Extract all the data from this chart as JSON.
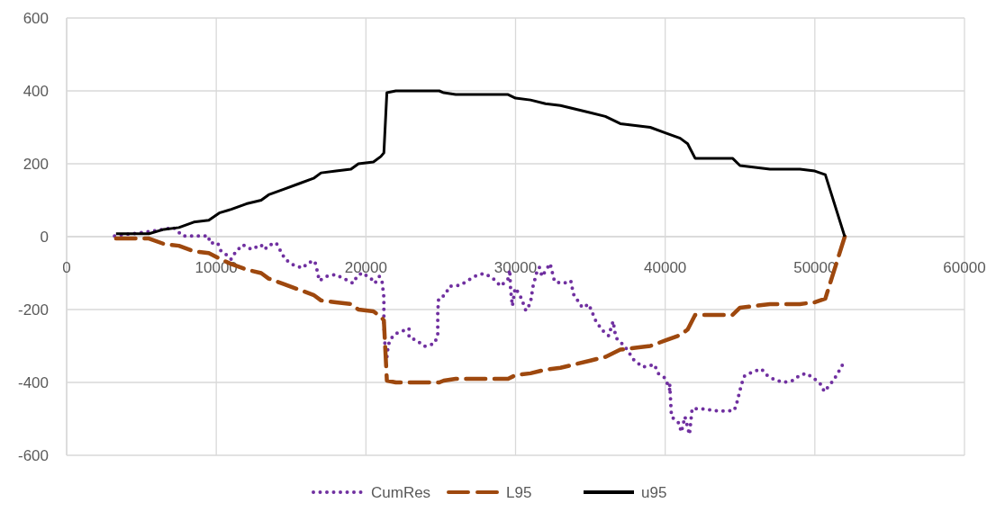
{
  "chart_data": {
    "type": "line",
    "xlim": [
      0,
      60000
    ],
    "xticks": [
      0,
      10000,
      20000,
      30000,
      40000,
      50000,
      60000
    ],
    "ylim": [
      -600,
      600
    ],
    "yticks": [
      -600,
      -400,
      -200,
      0,
      200,
      400,
      600
    ],
    "grid": true,
    "legend": "bottom",
    "series": [
      {
        "name": "CumRes",
        "color": "#7030a0",
        "line_style": "dotted",
        "x": [
          3200,
          5760,
          7150,
          7750,
          8770,
          9490,
          9550,
          10090,
          10270,
          10690,
          10990,
          11290,
          11770,
          12370,
          12970,
          13270,
          13400,
          14000,
          14600,
          15200,
          15800,
          16100,
          16580,
          16760,
          16880,
          17360,
          17960,
          18560,
          19160,
          19400,
          19760,
          20360,
          20600,
          20900,
          21080,
          21200,
          21200,
          21200,
          21260,
          21380,
          21500,
          21800,
          22100,
          22880,
          22880,
          23360,
          23900,
          24560,
          24800,
          24800,
          24860,
          25290,
          25590,
          26310,
          26790,
          27270,
          27870,
          28410,
          29010,
          29490,
          29610,
          29670,
          29790,
          29970,
          30270,
          30510,
          30690,
          30990,
          31170,
          31410,
          31590,
          31770,
          32310,
          32610,
          33210,
          33690,
          33870,
          34470,
          34890,
          35370,
          35800,
          36220,
          36520,
          36700,
          37300,
          37900,
          38500,
          39280,
          39520,
          40000,
          40300,
          40300,
          40420,
          40900,
          41080,
          41320,
          41620,
          41800,
          42400,
          43600,
          44620,
          44800,
          45100,
          45290,
          45830,
          46430,
          46790,
          47330,
          47930,
          48530,
          49010,
          49430,
          49910,
          50390,
          50630,
          51230,
          51530,
          51830
        ],
        "values": [
          2,
          15,
          25,
          2,
          2,
          2,
          -17,
          -17,
          -37,
          -50,
          -62,
          -42,
          -22,
          -35,
          -22,
          -35,
          -25,
          -17,
          -62,
          -79,
          -86,
          -72,
          -67,
          -96,
          -121,
          -109,
          -104,
          -116,
          -128,
          -109,
          -99,
          -116,
          -128,
          -109,
          -124,
          -166,
          -207,
          -240,
          -289,
          -338,
          -296,
          -272,
          -264,
          -252,
          -277,
          -284,
          -301,
          -294,
          -272,
          -207,
          -170,
          -160,
          -136,
          -133,
          -121,
          -109,
          -101,
          -111,
          -136,
          -116,
          -91,
          -146,
          -190,
          -141,
          -158,
          -183,
          -203,
          -183,
          -136,
          -99,
          -84,
          -109,
          -74,
          -124,
          -128,
          -121,
          -158,
          -195,
          -185,
          -232,
          -257,
          -272,
          -232,
          -277,
          -301,
          -338,
          -358,
          -351,
          -375,
          -388,
          -420,
          -405,
          -494,
          -511,
          -536,
          -494,
          -543,
          -472,
          -472,
          -479,
          -477,
          -454,
          -405,
          -383,
          -371,
          -363,
          -380,
          -393,
          -400,
          -395,
          -380,
          -375,
          -388,
          -405,
          -425,
          -395,
          -375,
          -353
        ]
      },
      {
        "name": "L95",
        "color": "#9e480e",
        "line_style": "dashed",
        "x": [
          3300,
          5500,
          6500,
          7500,
          8500,
          9500,
          10200,
          11000,
          12000,
          13000,
          13500,
          14500,
          15500,
          16500,
          17000,
          18000,
          19000,
          19500,
          20500,
          21000,
          21200,
          21400,
          22000,
          24900,
          25200,
          26000,
          29500,
          30000,
          31000,
          32000,
          33000,
          34000,
          35000,
          36000,
          37000,
          38000,
          39000,
          40000,
          41000,
          41500,
          42000,
          44500,
          45000,
          46000,
          47000,
          49000,
          50000,
          50700,
          52000
        ],
        "values": [
          -5,
          -5,
          -20,
          -25,
          -40,
          -45,
          -60,
          -75,
          -90,
          -100,
          -115,
          -130,
          -145,
          -160,
          -175,
          -180,
          -185,
          -200,
          -205,
          -220,
          -230,
          -395,
          -400,
          -400,
          -395,
          -390,
          -390,
          -380,
          -375,
          -365,
          -360,
          -350,
          -340,
          -330,
          -310,
          -305,
          -300,
          -285,
          -270,
          -255,
          -215,
          -215,
          -195,
          -190,
          -185,
          -185,
          -180,
          -170,
          0
        ]
      },
      {
        "name": "u95",
        "color": "#000000",
        "line_style": "solid",
        "x": [
          3300,
          5500,
          6500,
          7500,
          8500,
          9500,
          10200,
          11000,
          12000,
          13000,
          13500,
          14500,
          15500,
          16500,
          17000,
          18000,
          19000,
          19500,
          20500,
          21000,
          21200,
          21400,
          22000,
          24900,
          25200,
          26000,
          29500,
          30000,
          31000,
          32000,
          33000,
          34000,
          35000,
          36000,
          37000,
          38000,
          39000,
          40000,
          41000,
          41500,
          42000,
          44500,
          45000,
          46000,
          47000,
          49000,
          50000,
          50700,
          52000
        ],
        "values": [
          8,
          8,
          20,
          25,
          40,
          45,
          65,
          75,
          90,
          100,
          115,
          130,
          145,
          160,
          175,
          180,
          185,
          200,
          205,
          220,
          230,
          395,
          400,
          400,
          395,
          390,
          390,
          380,
          375,
          365,
          360,
          350,
          340,
          330,
          310,
          305,
          300,
          285,
          270,
          255,
          215,
          215,
          195,
          190,
          185,
          185,
          180,
          170,
          0
        ]
      }
    ]
  }
}
